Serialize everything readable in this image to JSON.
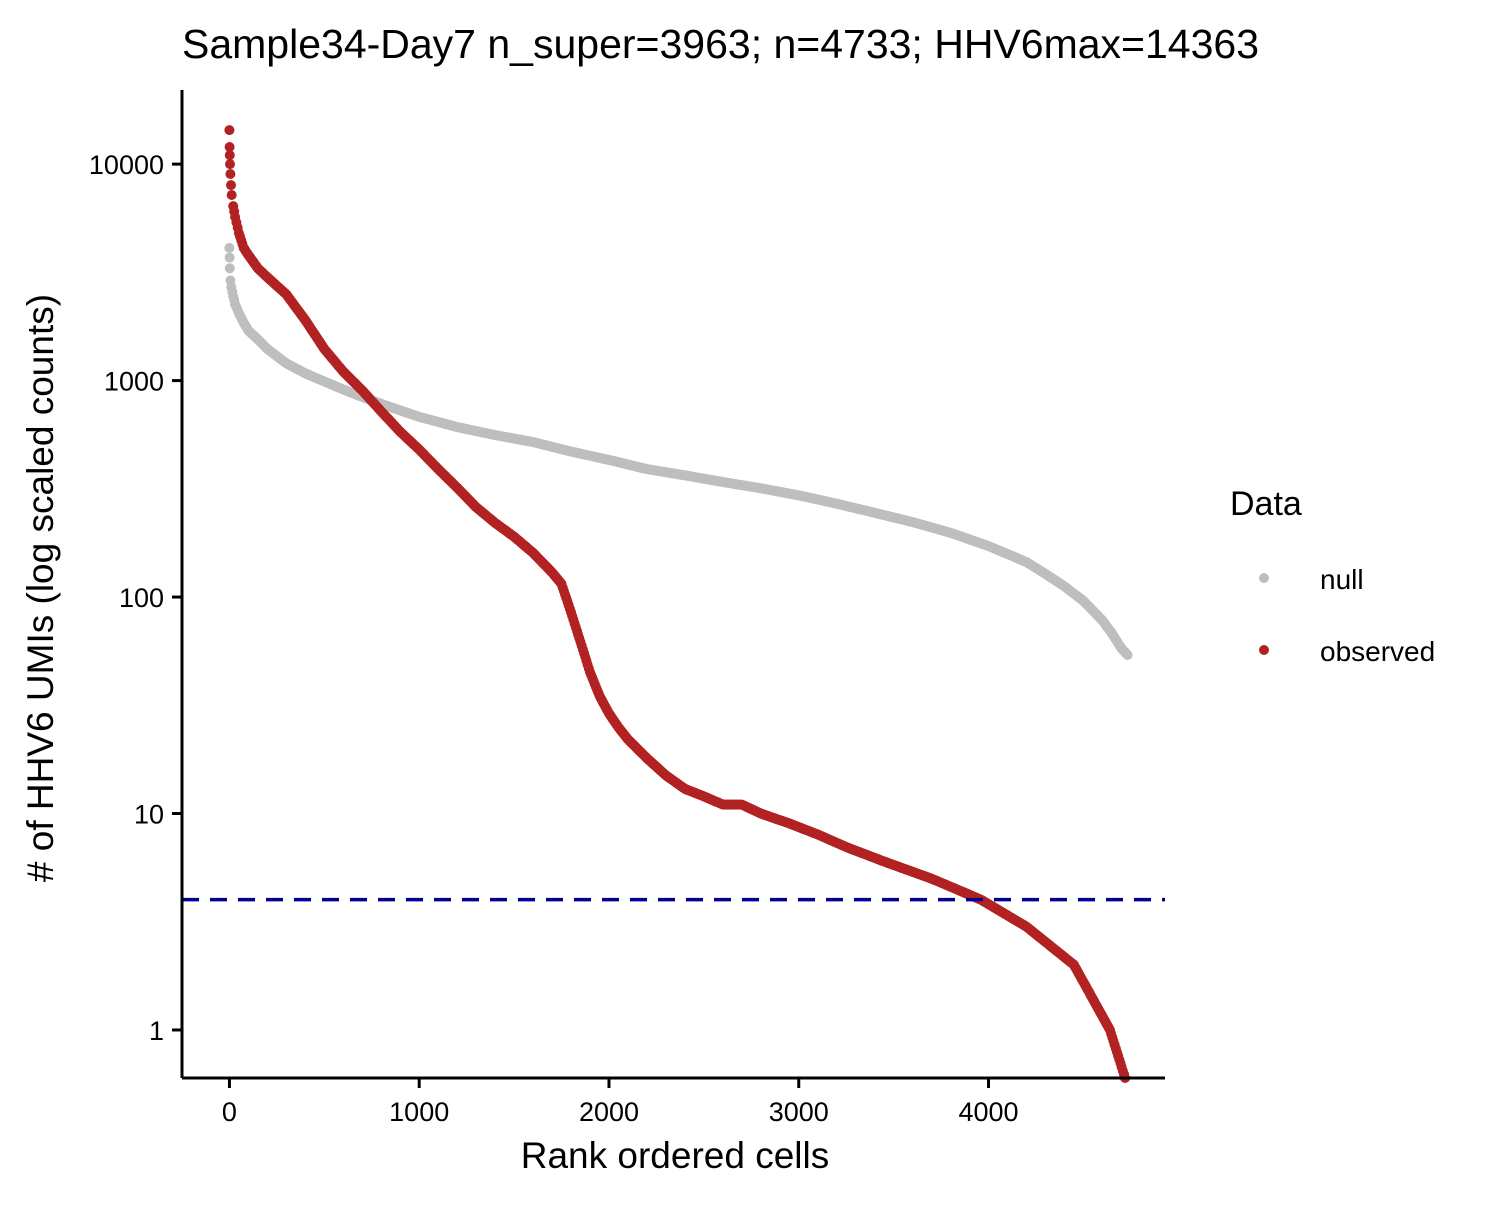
{
  "chart_data": {
    "type": "scatter",
    "title": "Sample34-Day7 n_super=3963; n=4733; HHV6max=14363",
    "xlabel": "Rank ordered cells",
    "ylabel": "# of HHV6 UMIs (log scaled counts)",
    "x_scale": "linear",
    "y_scale": "log10",
    "xlim": [
      -250,
      4930
    ],
    "ylim": [
      0.6,
      22000
    ],
    "x_ticks": [
      0,
      1000,
      2000,
      3000,
      4000
    ],
    "x_tick_labels": [
      "0",
      "1000",
      "2000",
      "3000",
      "4000"
    ],
    "y_ticks": [
      1,
      10,
      100,
      1000,
      10000
    ],
    "y_tick_labels": [
      "1",
      "10",
      "100",
      "1000",
      "10000"
    ],
    "grid": false,
    "legend": {
      "title": "Data",
      "position": "right",
      "entries": [
        {
          "label": "null",
          "color": "#BEBEBE"
        },
        {
          "label": "observed",
          "color": "#B22222"
        }
      ]
    },
    "reference_lines": [
      {
        "orientation": "horizontal",
        "y": 4,
        "style": "dashed",
        "color": "#00008B"
      }
    ],
    "series": [
      {
        "name": "null",
        "color": "#BEBEBE",
        "x": [
          0,
          1,
          2,
          5,
          10,
          20,
          30,
          50,
          75,
          100,
          150,
          200,
          300,
          400,
          500,
          600,
          700,
          800,
          1000,
          1200,
          1400,
          1600,
          1800,
          2000,
          2200,
          2400,
          2600,
          2800,
          3000,
          3200,
          3400,
          3600,
          3800,
          4000,
          4100,
          4200,
          4300,
          4400,
          4500,
          4600,
          4650,
          4700,
          4733
        ],
        "y": [
          4100,
          3700,
          3300,
          2900,
          2700,
          2450,
          2250,
          2050,
          1850,
          1700,
          1550,
          1400,
          1200,
          1080,
          990,
          910,
          840,
          780,
          680,
          610,
          560,
          520,
          470,
          430,
          390,
          365,
          340,
          318,
          295,
          270,
          245,
          222,
          198,
          172,
          158,
          145,
          128,
          112,
          96,
          78,
          68,
          58,
          54
        ]
      },
      {
        "name": "observed",
        "color": "#B22222",
        "x": [
          0,
          1,
          2,
          3,
          5,
          8,
          12,
          20,
          30,
          50,
          75,
          100,
          150,
          200,
          300,
          400,
          500,
          600,
          700,
          800,
          900,
          1000,
          1100,
          1200,
          1300,
          1400,
          1500,
          1600,
          1700,
          1750,
          1800,
          1850,
          1900,
          1950,
          2000,
          2050,
          2100,
          2200,
          2300,
          2400,
          2500,
          2600,
          2700,
          2800,
          2950,
          3100,
          3250,
          3450,
          3700,
          3960,
          4200,
          4450,
          4640,
          4720
        ],
        "y": [
          14363,
          12000,
          11000,
          10000,
          9000,
          8000,
          7200,
          6400,
          5700,
          4800,
          4100,
          3800,
          3300,
          3000,
          2500,
          1900,
          1400,
          1100,
          900,
          720,
          580,
          480,
          390,
          320,
          260,
          220,
          190,
          160,
          130,
          115,
          85,
          62,
          45,
          35,
          29,
          25,
          22,
          18,
          15,
          13,
          12,
          11,
          11,
          10,
          9,
          8,
          7,
          6,
          5,
          4,
          3,
          2,
          1,
          0.6
        ]
      }
    ]
  }
}
